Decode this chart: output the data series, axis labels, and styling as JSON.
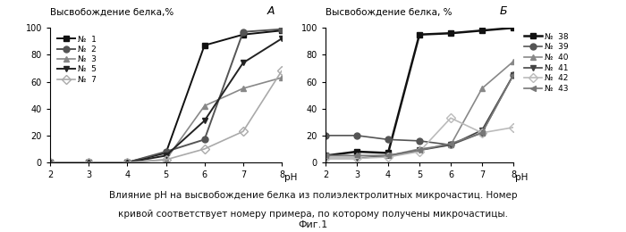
{
  "left_title": "Высвобождение белка,%",
  "left_label": "А",
  "right_title": "Высвобождение белка, %",
  "right_label": "Б",
  "xlabel": "рН",
  "ylim": [
    0,
    100
  ],
  "xlim": [
    2,
    8
  ],
  "xticks": [
    2,
    3,
    4,
    5,
    6,
    7,
    8
  ],
  "yticks": [
    0,
    20,
    40,
    60,
    80,
    100
  ],
  "ytick_labels": [
    "0",
    "20",
    "40",
    "60",
    "80",
    "100"
  ],
  "caption_line1": "Влияние pH на высвобождение белка из полиэлектролитных микрочастиц. Номер",
  "caption_line2": "кривой соответствует номеру примера, по которому получены микрочастицы.",
  "fig_label": "Фиг.1",
  "left_series": [
    {
      "label": "№  1",
      "marker": "s",
      "color": "#111111",
      "lw": 1.4,
      "ms": 5,
      "fillstyle": "full",
      "x": [
        2,
        3,
        4,
        5,
        6,
        7,
        8
      ],
      "y": [
        0,
        0,
        0,
        7,
        87,
        95,
        98
      ]
    },
    {
      "label": "№  2",
      "marker": "o",
      "color": "#555555",
      "lw": 1.4,
      "ms": 5,
      "fillstyle": "full",
      "x": [
        2,
        3,
        4,
        5,
        6,
        7,
        8
      ],
      "y": [
        0,
        0,
        0,
        8,
        17,
        97,
        99
      ]
    },
    {
      "label": "№  3",
      "marker": "^",
      "color": "#888888",
      "lw": 1.2,
      "ms": 5,
      "fillstyle": "full",
      "x": [
        2,
        3,
        4,
        5,
        6,
        7,
        8
      ],
      "y": [
        0,
        0,
        0,
        2,
        42,
        55,
        63
      ]
    },
    {
      "label": "№  5",
      "marker": "v",
      "color": "#222222",
      "lw": 1.4,
      "ms": 5,
      "fillstyle": "full",
      "x": [
        2,
        3,
        4,
        5,
        6,
        7,
        8
      ],
      "y": [
        0,
        0,
        0,
        5,
        31,
        74,
        92
      ]
    },
    {
      "label": "№  7",
      "marker": "D",
      "color": "#aaaaaa",
      "lw": 1.2,
      "ms": 5,
      "fillstyle": "none",
      "x": [
        2,
        3,
        4,
        5,
        6,
        7,
        8
      ],
      "y": [
        0,
        0,
        0,
        2,
        10,
        23,
        68
      ]
    }
  ],
  "right_series": [
    {
      "label": "№  38",
      "marker": "s",
      "color": "#111111",
      "lw": 1.8,
      "ms": 5,
      "fillstyle": "full",
      "x": [
        2,
        3,
        4,
        5,
        6,
        7,
        8
      ],
      "y": [
        5,
        8,
        7,
        95,
        96,
        98,
        100
      ]
    },
    {
      "label": "№  39",
      "marker": "o",
      "color": "#555555",
      "lw": 1.2,
      "ms": 5,
      "fillstyle": "full",
      "x": [
        2,
        3,
        4,
        5,
        6,
        7,
        8
      ],
      "y": [
        20,
        20,
        17,
        16,
        13,
        22,
        65
      ]
    },
    {
      "label": "№  40",
      "marker": "^",
      "color": "#888888",
      "lw": 1.2,
      "ms": 5,
      "fillstyle": "full",
      "x": [
        2,
        3,
        4,
        5,
        6,
        7,
        8
      ],
      "y": [
        5,
        5,
        5,
        10,
        13,
        55,
        75
      ]
    },
    {
      "label": "№  41",
      "marker": "v",
      "color": "#444444",
      "lw": 1.2,
      "ms": 5,
      "fillstyle": "full",
      "x": [
        2,
        3,
        4,
        5,
        6,
        7,
        8
      ],
      "y": [
        3,
        3,
        5,
        9,
        13,
        24,
        65
      ]
    },
    {
      "label": "№  42",
      "marker": "D",
      "color": "#bbbbbb",
      "lw": 1.2,
      "ms": 5,
      "fillstyle": "none",
      "x": [
        2,
        3,
        4,
        5,
        6,
        7,
        8
      ],
      "y": [
        3,
        3,
        4,
        8,
        33,
        22,
        26
      ]
    },
    {
      "label": "№  43",
      "marker": "<",
      "color": "#777777",
      "lw": 1.2,
      "ms": 5,
      "fillstyle": "full",
      "x": [
        2,
        3,
        4,
        5,
        6,
        7,
        8
      ],
      "y": [
        5,
        5,
        5,
        9,
        14,
        22,
        65
      ]
    }
  ]
}
